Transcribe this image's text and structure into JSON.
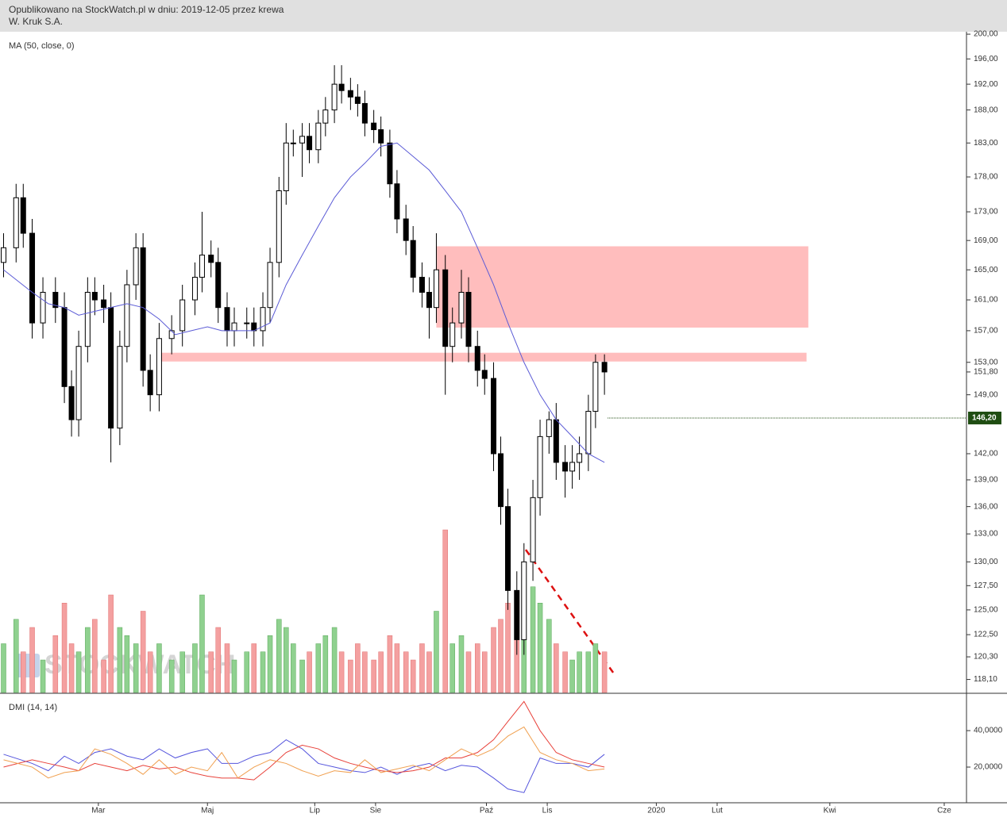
{
  "header": {
    "published": "Opublikowano na StockWatch.pl w dniu: 2019-12-05 przez krewa",
    "instrument": "W. Kruk S.A."
  },
  "chart_data": [
    {
      "type": "candlestick",
      "label": "MA (50, close, 0)",
      "watermark": "STOCKWATCH",
      "log": true,
      "xlim": [
        0,
        540
      ],
      "ylim": [
        116.85,
        200.4
      ],
      "yticks": [
        {
          "value": 200,
          "label": "200,00"
        },
        {
          "value": 196,
          "label": "196,00"
        },
        {
          "value": 192,
          "label": "192,00"
        },
        {
          "value": 188,
          "label": "188,00"
        },
        {
          "value": 183,
          "label": "183,00"
        },
        {
          "value": 178,
          "label": "178,00"
        },
        {
          "value": 173,
          "label": "173,00"
        },
        {
          "value": 169,
          "label": "169,00"
        },
        {
          "value": 165,
          "label": "165,00"
        },
        {
          "value": 161,
          "label": "161,00"
        },
        {
          "value": 157,
          "label": "157,00"
        },
        {
          "value": 153,
          "label": "153,00"
        },
        {
          "value": 149,
          "label": "149,00"
        },
        {
          "value": 142,
          "label": "142,00"
        },
        {
          "value": 139,
          "label": "139,00"
        },
        {
          "value": 136,
          "label": "136,00"
        },
        {
          "value": 133,
          "label": "133,00"
        },
        {
          "value": 130,
          "label": "130,00"
        },
        {
          "value": 127.5,
          "label": "127,50"
        },
        {
          "value": 125,
          "label": "125,00"
        },
        {
          "value": 122.5,
          "label": "122,50"
        },
        {
          "value": 120.3,
          "label": "120,30"
        },
        {
          "value": 118.1,
          "label": "118,10"
        }
      ],
      "up_color": "#ffffff",
      "down_color": "#000000",
      "volume_up_color": "#8fd18f",
      "volume_down_color": "#f4a0a0",
      "x": [
        2,
        9,
        13,
        18,
        24,
        31,
        36,
        40,
        44,
        49,
        53,
        58,
        62,
        67,
        71,
        76,
        80,
        84,
        89,
        96,
        102,
        109,
        113,
        118,
        122,
        127,
        131,
        138,
        142,
        147,
        151,
        156,
        160,
        164,
        169,
        173,
        178,
        182,
        187,
        191,
        196,
        200,
        204,
        209,
        213,
        218,
        222,
        227,
        231,
        236,
        240,
        244,
        249,
        253,
        258,
        262,
        267,
        271,
        276,
        280,
        284,
        289,
        293,
        298,
        302,
        307,
        311,
        316,
        320,
        324,
        329,
        333,
        338
      ],
      "open": [
        166,
        168,
        175,
        170,
        158,
        162,
        160,
        150,
        146,
        155,
        162,
        161,
        160,
        145,
        155,
        163,
        168,
        152,
        149,
        156,
        157,
        161,
        164,
        167,
        166,
        160,
        157,
        158,
        158,
        157,
        160,
        166,
        176,
        183,
        183,
        184,
        182,
        186,
        188,
        192,
        191,
        190,
        189,
        186,
        185,
        183,
        177,
        172,
        169,
        164,
        162,
        160,
        165,
        155,
        158,
        162,
        155,
        152,
        151,
        142,
        136,
        127,
        122,
        130,
        137,
        144,
        146,
        141,
        140,
        141,
        142,
        147,
        153
      ],
      "high": [
        170,
        177,
        177,
        172,
        164,
        164,
        162,
        152,
        157,
        164,
        164,
        163,
        162,
        157,
        165,
        170,
        170,
        154,
        158,
        159,
        163,
        166,
        173,
        169,
        168,
        162,
        160,
        160,
        160,
        162,
        168,
        178,
        186,
        185,
        186,
        186,
        188,
        190,
        195,
        195,
        193,
        192,
        191,
        188,
        187,
        185,
        179,
        174,
        171,
        166,
        164,
        170,
        167,
        160,
        165,
        164,
        157,
        154,
        153,
        144,
        138,
        129,
        132,
        139,
        146,
        147,
        148,
        143,
        143,
        144,
        149,
        154,
        154
      ],
      "low": [
        164,
        166,
        168,
        156,
        156,
        158,
        148,
        144,
        144,
        153,
        159,
        158,
        141,
        143,
        153,
        161,
        150,
        147,
        147,
        154,
        155,
        159,
        162,
        164,
        158,
        155,
        155,
        156,
        155,
        155,
        158,
        164,
        174,
        181,
        178,
        180,
        180,
        184,
        186,
        189,
        188,
        187,
        184,
        183,
        181,
        175,
        170,
        167,
        162,
        160,
        156,
        158,
        149,
        153,
        156,
        153,
        150,
        149,
        140,
        134,
        125,
        120.5,
        120.5,
        128,
        135,
        142,
        139,
        137,
        138,
        139,
        140,
        145,
        149
      ],
      "close": [
        168,
        175,
        170,
        158,
        162,
        160,
        150,
        146,
        155,
        162,
        161,
        160,
        145,
        155,
        163,
        168,
        152,
        149,
        156,
        157,
        161,
        164,
        167,
        166,
        160,
        157,
        158,
        158,
        157,
        160,
        166,
        176,
        183,
        183,
        184,
        182,
        186,
        188,
        192,
        191,
        190,
        189,
        186,
        185,
        183,
        177,
        172,
        169,
        164,
        162,
        160,
        165,
        155,
        158,
        162,
        155,
        152,
        151,
        142,
        136,
        127,
        122,
        130,
        137,
        144,
        146,
        141,
        140,
        141,
        142,
        147,
        153,
        151.8
      ],
      "volume": [
        30,
        45,
        25,
        40,
        20,
        35,
        55,
        30,
        25,
        40,
        45,
        20,
        60,
        40,
        35,
        30,
        50,
        25,
        30,
        20,
        25,
        30,
        60,
        25,
        40,
        30,
        20,
        25,
        30,
        25,
        35,
        45,
        40,
        30,
        20,
        25,
        30,
        35,
        40,
        25,
        20,
        30,
        25,
        20,
        25,
        35,
        30,
        25,
        20,
        30,
        25,
        50,
        100,
        30,
        35,
        25,
        30,
        25,
        40,
        45,
        55,
        60,
        75,
        65,
        55,
        45,
        30,
        25,
        20,
        25,
        25,
        30,
        25
      ],
      "ma": {
        "color": "#5b5bd6",
        "x": [
          2,
          18,
          27,
          36,
          44,
          53,
          62,
          71,
          80,
          89,
          98,
          107,
          116,
          124,
          133,
          142,
          151,
          160,
          169,
          178,
          187,
          196,
          204,
          213,
          222,
          231,
          240,
          249,
          258,
          267,
          276,
          284,
          293,
          302,
          311,
          320,
          329,
          338
        ],
        "values": [
          165,
          162,
          160.5,
          160,
          159,
          159.5,
          160,
          160.5,
          160,
          158.5,
          156.5,
          157,
          157.5,
          157,
          157,
          157,
          158,
          163,
          167,
          171,
          175,
          178,
          180,
          182.5,
          183,
          181,
          179,
          176,
          173,
          168,
          163,
          158,
          153,
          149,
          146,
          144,
          142,
          141
        ]
      },
      "zones": [
        {
          "xlim": [
            244,
            452
          ],
          "ylim": [
            157.4,
            168.2
          ],
          "color": "#ffbdbd"
        },
        {
          "xlim": [
            89,
            451
          ],
          "ylim": [
            153.1,
            154.2
          ],
          "color": "#ffbdbd"
        }
      ],
      "price_markers": [
        {
          "value": 151.8,
          "label": "151,80"
        },
        {
          "value": 146.2,
          "label": "146,20",
          "color": "#1f4d12"
        }
      ]
    },
    {
      "type": "line",
      "label": "DMI (14, 14)",
      "xlim": [
        0,
        540
      ],
      "ylim": [
        0,
        59.6
      ],
      "yticks": [
        {
          "value": 40,
          "label": "40,0000"
        },
        {
          "value": 20,
          "label": "20,0000"
        }
      ],
      "xticks": [
        {
          "value": 55,
          "label": "Mar"
        },
        {
          "value": 116,
          "label": "Maj"
        },
        {
          "value": 176,
          "label": "Lip"
        },
        {
          "value": 210,
          "label": "Sie"
        },
        {
          "value": 272,
          "label": "Paź"
        },
        {
          "value": 306,
          "label": "Lis"
        },
        {
          "value": 367,
          "label": "2020"
        },
        {
          "value": 401,
          "label": "Lut"
        },
        {
          "value": 464,
          "label": "Kwi"
        },
        {
          "value": 528,
          "label": "Cze"
        }
      ],
      "x": [
        2,
        18,
        27,
        36,
        44,
        53,
        62,
        71,
        80,
        89,
        98,
        107,
        116,
        124,
        133,
        142,
        151,
        160,
        169,
        178,
        187,
        196,
        204,
        213,
        222,
        231,
        240,
        249,
        258,
        267,
        276,
        284,
        293,
        302,
        311,
        320,
        329,
        338
      ],
      "series": [
        {
          "color": "#5555dd",
          "values": [
            27,
            22,
            18,
            26,
            22,
            28,
            30,
            26,
            24,
            30,
            25,
            28,
            30,
            22,
            22,
            26,
            28,
            35,
            30,
            22,
            20,
            18,
            17,
            20,
            16,
            20,
            22,
            18,
            21,
            20,
            14,
            8,
            6,
            25,
            22,
            22,
            20,
            27
          ]
        },
        {
          "color": "#e8413a",
          "values": [
            20,
            24,
            22,
            20,
            18,
            22,
            20,
            18,
            21,
            19,
            20,
            17,
            15,
            14,
            14,
            13,
            20,
            28,
            32,
            30,
            25,
            22,
            20,
            18,
            17,
            18,
            20,
            25,
            25,
            28,
            35,
            45,
            56,
            40,
            28,
            24,
            22,
            20
          ]
        },
        {
          "color": "#f0a050",
          "values": [
            24,
            20,
            14,
            17,
            18,
            30,
            27,
            22,
            16,
            24,
            16,
            20,
            18,
            28,
            14,
            20,
            24,
            22,
            18,
            15,
            18,
            17,
            24,
            17,
            19,
            21,
            18,
            24,
            30,
            26,
            30,
            37,
            42,
            28,
            24,
            22,
            18,
            19
          ]
        }
      ]
    }
  ]
}
